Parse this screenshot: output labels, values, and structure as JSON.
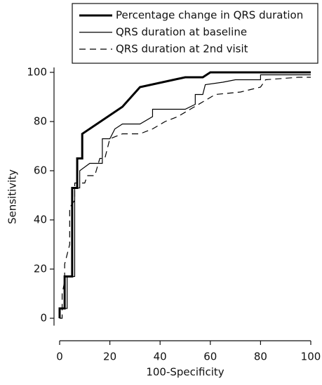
{
  "chart_data": {
    "type": "line",
    "xlabel": "100-Specificity",
    "ylabel": "Sensitivity",
    "xlim": [
      0,
      100
    ],
    "ylim": [
      -3,
      102
    ],
    "xticks": [
      0,
      20,
      40,
      60,
      80,
      100
    ],
    "yticks": [
      0,
      20,
      40,
      60,
      80,
      100
    ],
    "legend": "top",
    "series": [
      {
        "name": "Percentage change in QRS duration",
        "color": "#000000",
        "line_width": 3,
        "dash": "solid",
        "x": [
          0,
          0,
          2,
          2,
          5,
          5,
          7,
          7,
          9,
          9,
          25,
          32,
          50,
          57,
          60,
          100
        ],
        "values": [
          0,
          4,
          4,
          17,
          17,
          53,
          53,
          65,
          65,
          75,
          86,
          94,
          98,
          98,
          100,
          100
        ]
      },
      {
        "name": "QRS duration at baseline",
        "color": "#000000",
        "line_width": 1.2,
        "dash": "solid",
        "x": [
          0,
          0,
          3,
          3,
          6,
          6,
          8,
          8,
          12,
          17,
          17,
          20,
          22,
          25,
          32,
          37,
          37,
          50,
          54,
          54,
          57,
          58,
          65,
          70,
          80,
          80,
          100
        ],
        "values": [
          0,
          4,
          4,
          17,
          17,
          53,
          53,
          60,
          63,
          63,
          73,
          73,
          77,
          79,
          79,
          82,
          85,
          85,
          87,
          91,
          91,
          95,
          96,
          97,
          97,
          99,
          99
        ]
      },
      {
        "name": "QRS duration at 2nd visit",
        "color": "#000000",
        "line_width": 1.2,
        "dash": "dashed",
        "x": [
          0,
          1,
          1,
          2,
          2,
          4,
          4,
          6,
          6,
          10,
          11,
          14,
          16,
          18,
          20,
          25,
          32,
          37,
          42,
          47,
          52,
          57,
          62,
          72,
          80,
          82,
          95,
          100
        ],
        "values": [
          0,
          0,
          10,
          15,
          22,
          30,
          45,
          48,
          55,
          55,
          58,
          58,
          65,
          65,
          73,
          75,
          75,
          77,
          80,
          82,
          85,
          88,
          91,
          92,
          94,
          97,
          98,
          98
        ]
      }
    ]
  }
}
